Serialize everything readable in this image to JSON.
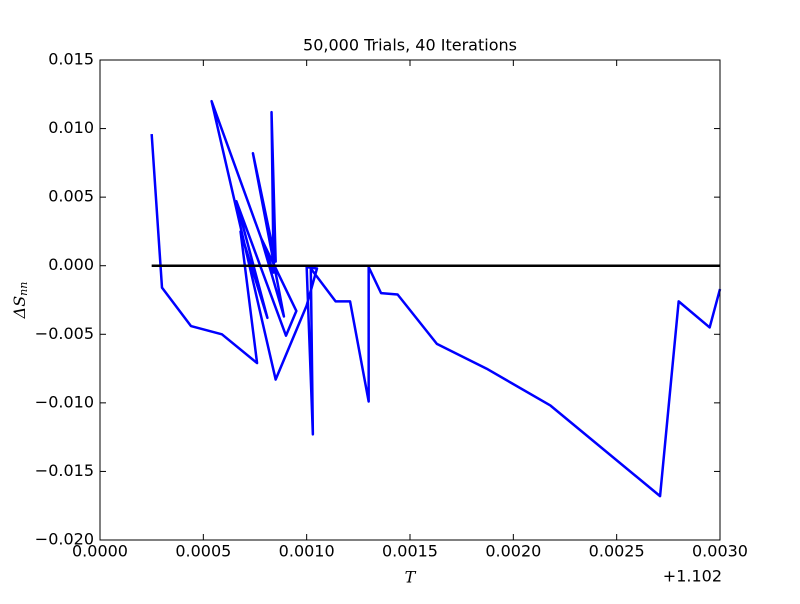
{
  "chart_data": {
    "type": "line",
    "title": "50,000 Trials, 40 Iterations",
    "xlabel": "T",
    "ylabel": "ΔS",
    "ylabel_sub": "nn",
    "x_offset": "+1.102",
    "xlim": [
      0,
      0.003
    ],
    "ylim": [
      -0.02,
      0.015
    ],
    "xticks": [
      {
        "value": 0,
        "label": "0.0000"
      },
      {
        "value": 0.0005,
        "label": "0.0005"
      },
      {
        "value": 0.001,
        "label": "0.0010"
      },
      {
        "value": 0.0015,
        "label": "0.0015"
      },
      {
        "value": 0.002,
        "label": "0.0020"
      },
      {
        "value": 0.0025,
        "label": "0.0025"
      },
      {
        "value": 0.003,
        "label": "0.0030"
      }
    ],
    "yticks": [
      {
        "value": -0.02,
        "label": "−0.020"
      },
      {
        "value": -0.015,
        "label": "−0.015"
      },
      {
        "value": -0.01,
        "label": "−0.010"
      },
      {
        "value": -0.005,
        "label": "−0.005"
      },
      {
        "value": 0,
        "label": "0.000"
      },
      {
        "value": 0.005,
        "label": "0.005"
      },
      {
        "value": 0.01,
        "label": "0.010"
      },
      {
        "value": 0.015,
        "label": "0.015"
      }
    ],
    "series": [
      {
        "color": "#0000ff",
        "x": [
          0.00025,
          0.0003,
          0.00044,
          0.00059,
          0.00076,
          0.00068,
          0.00081,
          0.00066,
          0.0009,
          0.00095,
          0.00078,
          0.00089,
          0.00074,
          0.00085,
          0.00083,
          0.00084,
          0.00054,
          0.00085,
          0.001,
          0.00105,
          0.001,
          0.00103,
          0.00102,
          0.00114,
          0.00121,
          0.0013,
          0.0013,
          0.00136,
          0.00144,
          0.00163,
          0.00187,
          0.00218,
          0.00271,
          0.0028,
          0.00295,
          0.003
        ],
        "values": [
          0.0096,
          -0.0016,
          -0.0044,
          -0.005,
          -0.0071,
          0.0025,
          -0.0038,
          0.0047,
          -0.0051,
          -0.0033,
          0.002,
          -0.0037,
          0.0082,
          0.0003,
          0.0112,
          -0.0005,
          0.012,
          -0.0083,
          -0.0029,
          -0.0002,
          -0.0001,
          -0.0123,
          -0.0002,
          -0.0026,
          -0.0026,
          -0.0099,
          -0.0001,
          -0.002,
          -0.0021,
          -0.0057,
          -0.0075,
          -0.0102,
          -0.0168,
          -0.0026,
          -0.0045,
          -0.0017
        ]
      },
      {
        "color": "#000000",
        "x": [
          0.00025,
          0.003
        ],
        "values": [
          0,
          0
        ]
      }
    ]
  }
}
